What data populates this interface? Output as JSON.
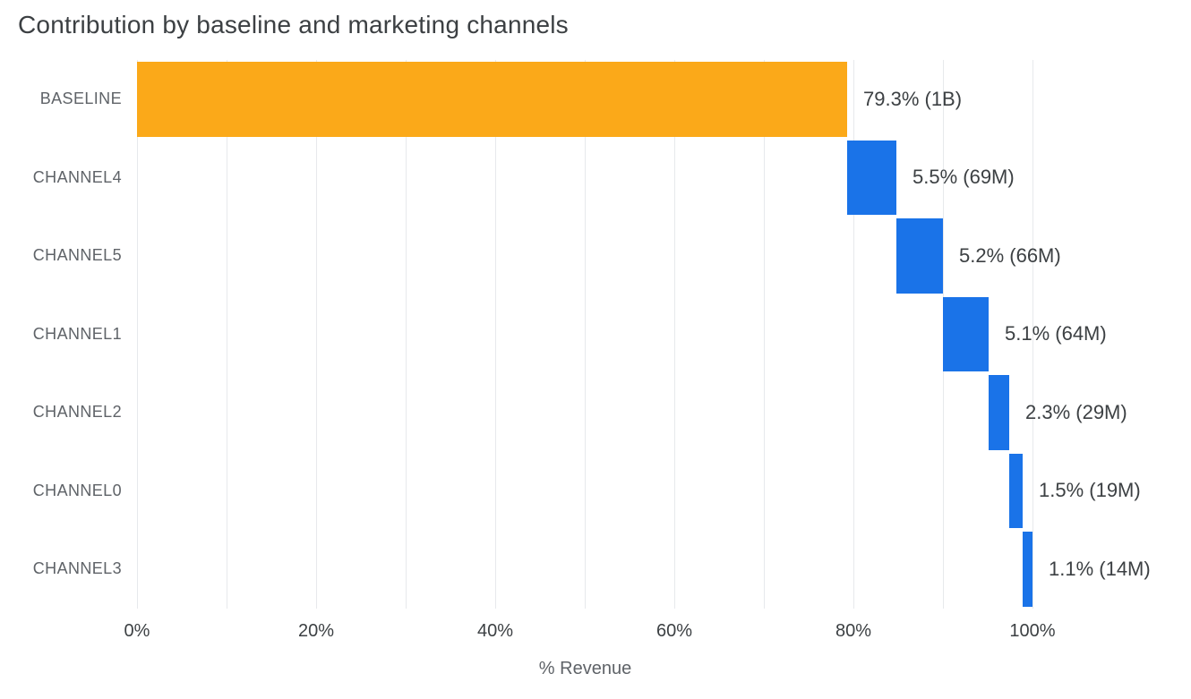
{
  "page": {
    "title": "Contribution by baseline and marketing channels"
  },
  "chart_data": {
    "type": "bar",
    "subtype": "horizontal-waterfall",
    "title": "Contribution by baseline and marketing channels",
    "xlabel": "% Revenue",
    "ylabel": "",
    "xlim": [
      0,
      100
    ],
    "grid": "vertical",
    "gridlines": {
      "show": true,
      "step": 10,
      "color": "#e7e9ec"
    },
    "legend": "none",
    "colors": {
      "baseline": "#FBA919",
      "channel": "#1A73E8"
    },
    "categories": [
      "BASELINE",
      "CHANNEL4",
      "CHANNEL5",
      "CHANNEL1",
      "CHANNEL2",
      "CHANNEL0",
      "CHANNEL3"
    ],
    "x_ticks": [
      {
        "value": 0,
        "label": "0%"
      },
      {
        "value": 20,
        "label": "20%"
      },
      {
        "value": 40,
        "label": "40%"
      },
      {
        "value": 60,
        "label": "60%"
      },
      {
        "value": 80,
        "label": "80%"
      },
      {
        "value": 100,
        "label": "100%"
      }
    ],
    "bars": [
      {
        "category": "BASELINE",
        "role": "baseline",
        "start": 0,
        "end": 79.3,
        "percent": 79.3,
        "absolute": "1B",
        "value_label": "79.3% (1B)",
        "color": "#FBA919"
      },
      {
        "category": "CHANNEL4",
        "role": "channel",
        "start": 79.3,
        "end": 84.8,
        "percent": 5.5,
        "absolute": "69M",
        "value_label": "5.5% (69M)",
        "color": "#1A73E8"
      },
      {
        "category": "CHANNEL5",
        "role": "channel",
        "start": 84.8,
        "end": 90.0,
        "percent": 5.2,
        "absolute": "66M",
        "value_label": "5.2% (66M)",
        "color": "#1A73E8"
      },
      {
        "category": "CHANNEL1",
        "role": "channel",
        "start": 90.0,
        "end": 95.1,
        "percent": 5.1,
        "absolute": "64M",
        "value_label": "5.1% (64M)",
        "color": "#1A73E8"
      },
      {
        "category": "CHANNEL2",
        "role": "channel",
        "start": 95.1,
        "end": 97.4,
        "percent": 2.3,
        "absolute": "29M",
        "value_label": "2.3% (29M)",
        "color": "#1A73E8"
      },
      {
        "category": "CHANNEL0",
        "role": "channel",
        "start": 97.4,
        "end": 98.9,
        "percent": 1.5,
        "absolute": "19M",
        "value_label": "1.5% (19M)",
        "color": "#1A73E8"
      },
      {
        "category": "CHANNEL3",
        "role": "channel",
        "start": 98.9,
        "end": 100.0,
        "percent": 1.1,
        "absolute": "14M",
        "value_label": "1.1% (14M)",
        "color": "#1A73E8"
      }
    ]
  }
}
